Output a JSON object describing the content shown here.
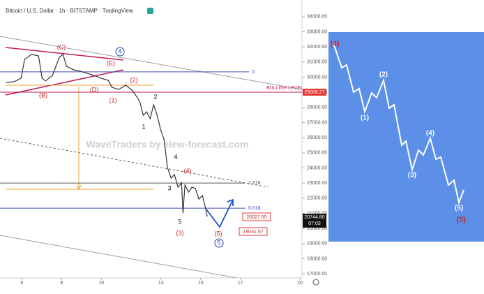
{
  "chart_data": {
    "type": "line",
    "title": "Bitcoin / U.S. Dollar · 1h · BITSTAMP · TradingView",
    "watermark": "WaveTraders by elew-forecast.com",
    "x": [
      5.19,
      5.61,
      5.96,
      6.14,
      6.49,
      6.84,
      7.02,
      7.19,
      7.54,
      7.89,
      8.07,
      8.25,
      8.6,
      8.95,
      9.3,
      9.65,
      10.0,
      10.35,
      10.53,
      10.88,
      11.23,
      11.58,
      11.93,
      12.11,
      12.28,
      12.46,
      12.63,
      12.81,
      12.98,
      13.16,
      13.33,
      13.51,
      13.68,
      13.86,
      14.04,
      14.11,
      14.21,
      14.39,
      14.56,
      14.74,
      14.91,
      15.09,
      15.26,
      15.33
    ],
    "series": [
      {
        "color": "#333333",
        "values": [
          29650,
          29700,
          29930,
          31180,
          31500,
          31410,
          29930,
          29750,
          30110,
          31320,
          31500,
          30720,
          30490,
          30390,
          30250,
          30110,
          29930,
          29790,
          29330,
          29190,
          29470,
          29100,
          28410,
          27480,
          27710,
          27250,
          28180,
          27480,
          26560,
          25870,
          24020,
          23330,
          23560,
          22730,
          23010,
          21020,
          22870,
          22400,
          22730,
          22640,
          21940,
          22170,
          21250,
          20790
        ]
      }
    ],
    "xlim": [
      4.9,
      20.1
    ],
    "xticks": [
      6,
      8,
      10,
      13,
      15,
      17,
      20
    ],
    "ylim": [
      16500,
      34500
    ],
    "yticks": [
      {
        "value": 17000,
        "label": "17000.00"
      },
      {
        "value": 18000,
        "label": "18000.00"
      },
      {
        "value": 19000,
        "label": "19000.00"
      },
      {
        "value": 20000,
        "label": "20000.00"
      },
      {
        "value": 21000,
        "label": "21000.00"
      },
      {
        "value": 22000,
        "label": "22000.00"
      },
      {
        "value": 23000,
        "label": "23000.00"
      },
      {
        "value": 24000,
        "label": "24000.00"
      },
      {
        "value": 25000,
        "label": "25000.00"
      },
      {
        "value": 26000,
        "label": "26000.00"
      },
      {
        "value": 27000,
        "label": "27000.00"
      },
      {
        "value": 28000,
        "label": "28000.00"
      },
      {
        "value": 29000,
        "label": "29000.00"
      },
      {
        "value": 30000,
        "label": "30000.00"
      },
      {
        "value": 31000,
        "label": "31000.00"
      },
      {
        "value": 32000,
        "label": "32000.00"
      },
      {
        "value": 33000,
        "label": "33000.00"
      },
      {
        "value": 34000,
        "label": "34000.00"
      }
    ],
    "levels": [
      {
        "value": 30350,
        "label": "0",
        "color": "#3f51b5"
      },
      {
        "value": 29008.27,
        "label": "BULLISH LEVEL",
        "color": "#c2185b"
      },
      {
        "value": 23000,
        "label": "2.618",
        "color": "#555555"
      },
      {
        "value": 21340,
        "label": "0.618",
        "color": "#3f51b5"
      }
    ],
    "price_boxes": [
      {
        "value": 29008.27,
        "color": "#e53935"
      },
      {
        "value": {
          "value": 20744.8,
          "label": "20744.80"
        },
        "color": "#111111",
        "countdown": "07:03"
      }
    ],
    "targets": [
      {
        "value": 20027.95,
        "label": "20027.95"
      },
      {
        "value": 19031.07,
        "label": "19031.07"
      }
    ],
    "wave_labels": [
      "(C)",
      "4",
      "(E)",
      "(B)",
      "(D)",
      "(2)",
      "(1)",
      "2",
      "1",
      "4",
      "(4)",
      "3",
      "5",
      "(3)",
      "(5)",
      "5"
    ],
    "scheme_labels": [
      "(4)",
      "(1)",
      "(2)",
      "(3)",
      "(4)",
      "(5)",
      "(5)"
    ]
  }
}
